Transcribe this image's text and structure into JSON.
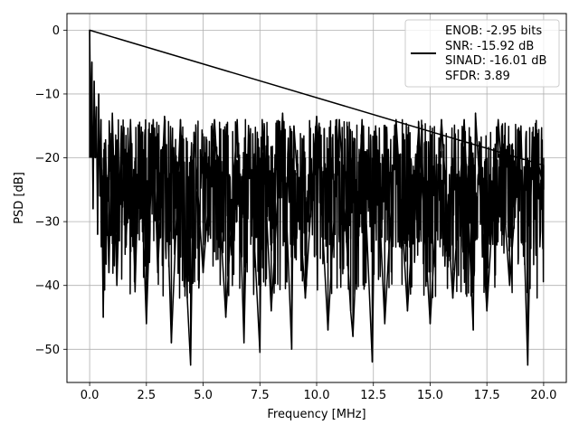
{
  "chart_data": {
    "type": "line",
    "title": "",
    "xlabel": "Frequency [MHz]",
    "ylabel": "PSD [dB]",
    "xlim": [
      -1.0,
      21.0
    ],
    "ylim": [
      -55.2,
      2.6
    ],
    "x_ticks": [
      0.0,
      2.5,
      5.0,
      7.5,
      10.0,
      12.5,
      15.0,
      17.5,
      20.0
    ],
    "x_tick_labels": [
      "0.0",
      "2.5",
      "5.0",
      "7.5",
      "10.0",
      "12.5",
      "15.0",
      "17.5",
      "20.0"
    ],
    "y_ticks": [
      0,
      -10,
      -20,
      -30,
      -40,
      -50
    ],
    "y_tick_labels": [
      "0",
      "−10",
      "−20",
      "−30",
      "−40",
      "−50"
    ],
    "grid": true,
    "legend_position": "top-right",
    "series": [
      {
        "color": "#000000",
        "x": [
          0.0,
          0.05,
          0.1,
          0.15,
          0.2,
          0.25,
          0.3,
          0.35,
          0.4,
          0.45,
          0.5,
          0.6,
          0.7,
          0.85,
          1.0,
          1.2,
          1.4,
          1.6,
          1.8,
          2.0,
          2.2,
          2.5,
          2.8,
          3.0,
          3.3,
          3.6,
          4.0,
          4.3,
          4.45,
          4.6,
          5.0,
          5.5,
          6.0,
          6.5,
          6.8,
          7.0,
          7.5,
          7.6,
          8.0,
          8.5,
          8.9,
          9.0,
          9.5,
          10.0,
          10.5,
          11.0,
          11.5,
          11.6,
          12.0,
          12.45,
          12.6,
          13.0,
          13.5,
          14.0,
          14.5,
          15.0,
          15.5,
          16.0,
          16.5,
          16.9,
          17.0,
          17.5,
          18.0,
          18.5,
          19.0,
          19.3,
          19.5,
          20.0
        ],
        "y": [
          0.0,
          -15.0,
          -5.0,
          -28.0,
          -8.0,
          -20.0,
          -12.0,
          -32.0,
          -10.0,
          -26.0,
          -14.0,
          -45.0,
          -18.0,
          -38.0,
          -13.0,
          -40.0,
          -15.0,
          -34.0,
          -14.0,
          -41.0,
          -15.0,
          -46.0,
          -14.0,
          -38.0,
          -13.5,
          -49.0,
          -14.0,
          -42.0,
          -52.5,
          -16.0,
          -38.0,
          -14.0,
          -45.0,
          -14.0,
          -49.0,
          -15.0,
          -50.5,
          -14.0,
          -44.0,
          -13.0,
          -50.0,
          -15.0,
          -42.0,
          -13.5,
          -47.0,
          -14.0,
          -44.0,
          -48.0,
          -14.0,
          -52.0,
          -15.0,
          -46.0,
          -14.0,
          -44.0,
          -15.0,
          -46.0,
          -14.0,
          -42.0,
          -14.0,
          -47.0,
          -13.0,
          -44.0,
          -14.0,
          -40.0,
          -15.0,
          -52.5,
          -16.0,
          -25.0
        ]
      }
    ],
    "legend": {
      "line_color": "#000000",
      "lines": [
        "ENOB: -2.95 bits",
        "SNR: -15.92 dB",
        "SINAD: -16.01 dB",
        "SFDR: 3.89"
      ]
    }
  }
}
